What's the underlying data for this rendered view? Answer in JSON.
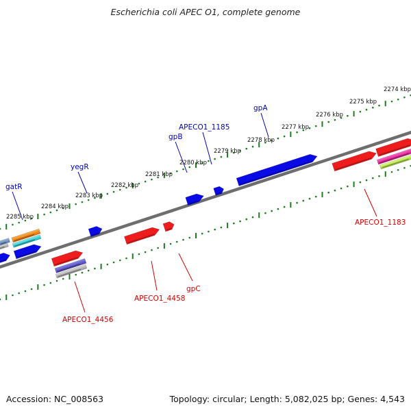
{
  "title": "Escherichia coli APEC O1, complete genome",
  "footer": {
    "accession": "Accession: NC_008563",
    "stats": "Topology: circular; Length: 5,082,025 bp; Genes: 4,543"
  },
  "colors": {
    "backbone": "#6e6e6e",
    "tick": "#1e7a1e",
    "forward_feature": "#0a0ae6",
    "reverse_feature": "#ee1c1c",
    "forward_label": "#0000b4",
    "reverse_label": "#d40000"
  },
  "scale_labels": [
    "2274 kbp",
    "2275 kbp",
    "2276 kbp",
    "2277 kbp",
    "2278 kbp",
    "2279 kbp",
    "2280 kbp",
    "2281 kbp",
    "2282 kbp",
    "2283 kbp",
    "2284 kbp",
    "2285 kbp"
  ],
  "forward_labels": [
    "gpA",
    "APECO1_1185",
    "gpB",
    "yegR",
    "gatR"
  ],
  "reverse_labels": [
    "APECO1_1183",
    "gpC",
    "APECO1_4458",
    "APECO1_4456"
  ]
}
